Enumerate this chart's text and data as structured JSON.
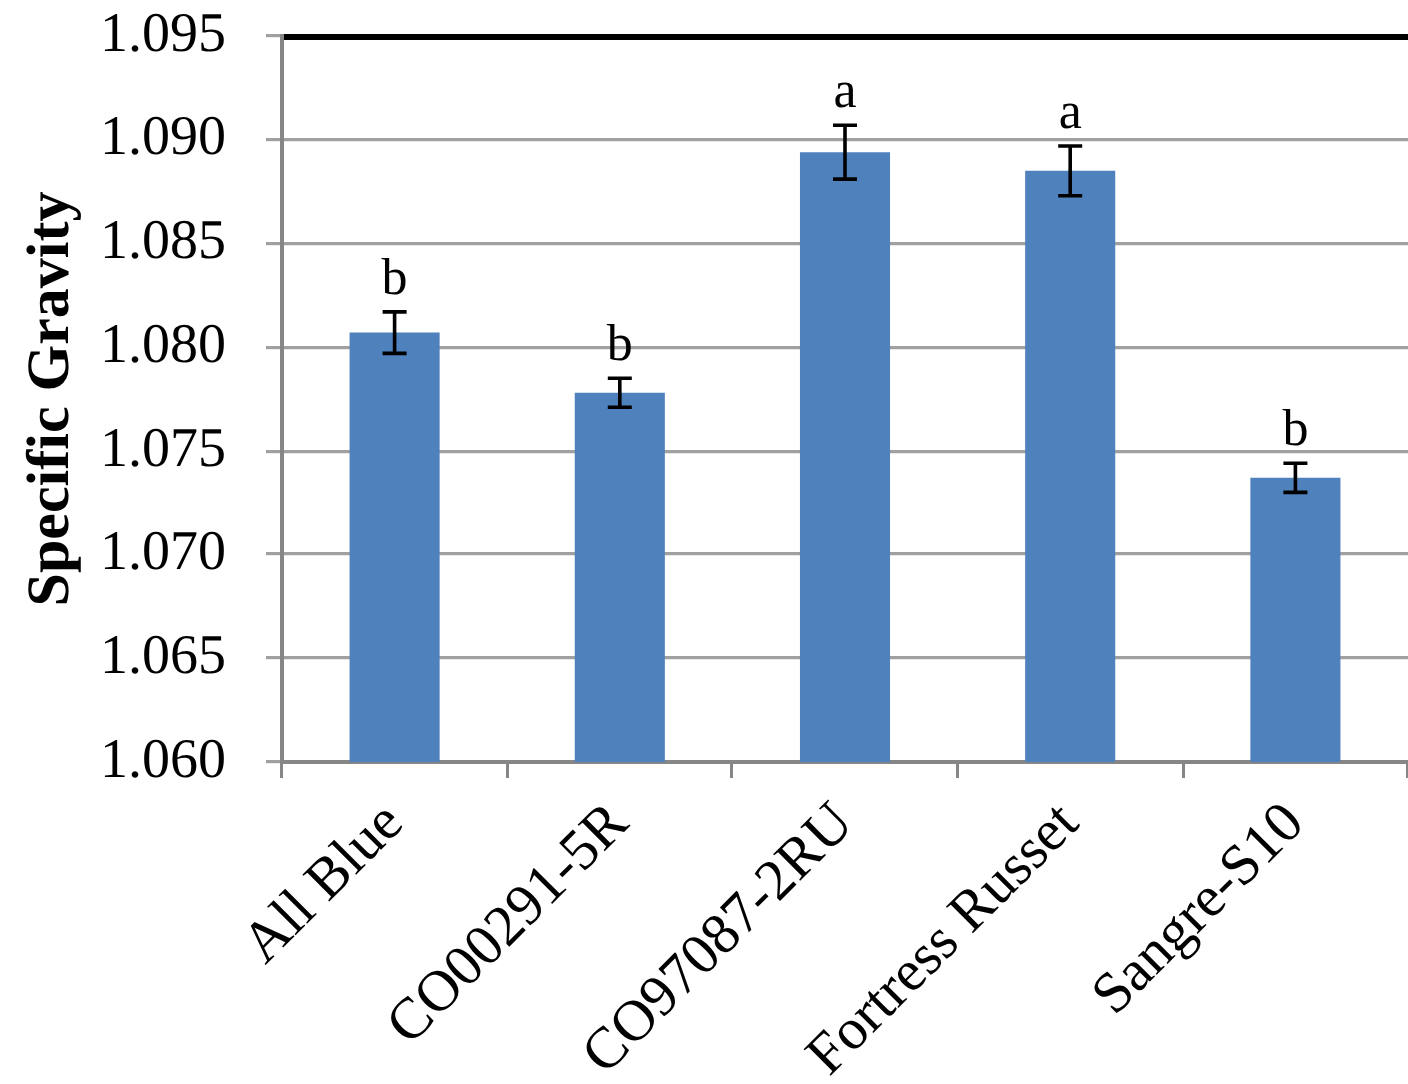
{
  "chart_data": {
    "type": "bar",
    "ylabel": "Specific Gravity",
    "categories": [
      "All Blue",
      "CO00291-5R",
      "CO97087-2RU",
      "Fortress Russet",
      "Sangre-S10"
    ],
    "values": [
      1.0807,
      1.0778,
      1.0894,
      1.0885,
      1.0737
    ],
    "errors": [
      0.001,
      0.0007,
      0.0013,
      0.0012,
      0.0007
    ],
    "color": "#4f81bd",
    "ylim": [
      1.06,
      1.095
    ],
    "yticks": [
      {
        "value": 1.06,
        "label": "1.060"
      },
      {
        "value": 1.065,
        "label": "1.065"
      },
      {
        "value": 1.07,
        "label": "1.070"
      },
      {
        "value": 1.075,
        "label": "1.075"
      },
      {
        "value": 1.08,
        "label": "1.080"
      },
      {
        "value": 1.085,
        "label": "1.085"
      },
      {
        "value": 1.09,
        "label": "1.090"
      },
      {
        "value": 1.095,
        "label": "1.095"
      }
    ],
    "grid": "y",
    "annotations": [
      {
        "text": "b",
        "x": "All Blue",
        "y": 1.0817
      },
      {
        "text": "b",
        "x": "CO00291-5R",
        "y": 1.0785
      },
      {
        "text": "a",
        "x": "CO97087-2RU",
        "y": 1.0907
      },
      {
        "text": "a",
        "x": "Fortress Russet",
        "y": 1.0897
      },
      {
        "text": "b",
        "x": "Sangre-S10",
        "y": 1.0744
      }
    ]
  }
}
